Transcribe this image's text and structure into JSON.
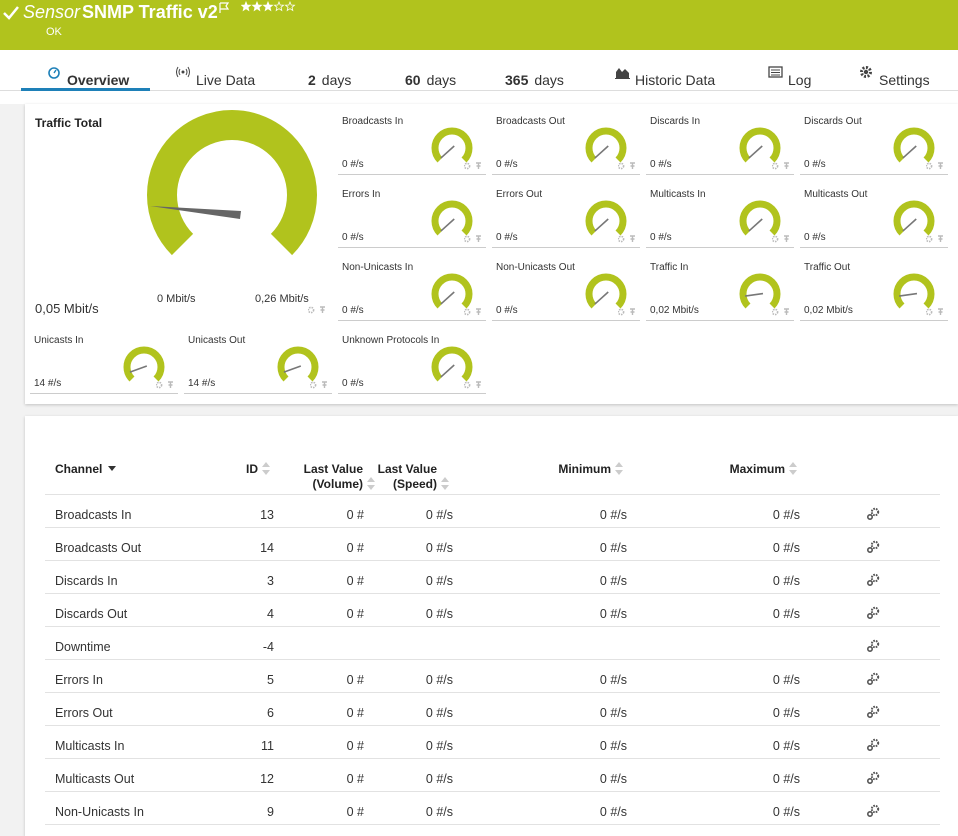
{
  "header": {
    "prefix": "Sensor",
    "title": "SNMP Traffic v2",
    "status": "OK"
  },
  "tabs": [
    {
      "label": "Overview"
    },
    {
      "label": "Live Data"
    },
    {
      "count": "2",
      "label": "days"
    },
    {
      "count": "60",
      "label": "days"
    },
    {
      "count": "365",
      "label": "days"
    },
    {
      "label": "Historic Data"
    },
    {
      "label": "Log"
    },
    {
      "label": "Settings"
    }
  ],
  "main_gauge": {
    "label": "Traffic Total",
    "value": "0,05 Mbit/s",
    "min": "0 Mbit/s",
    "max": "0,26 Mbit/s"
  },
  "gauges": [
    {
      "label": "Broadcasts In",
      "value": "0 #/s"
    },
    {
      "label": "Broadcasts Out",
      "value": "0 #/s"
    },
    {
      "label": "Discards In",
      "value": "0 #/s"
    },
    {
      "label": "Discards Out",
      "value": "0 #/s"
    },
    {
      "label": "Errors In",
      "value": "0 #/s"
    },
    {
      "label": "Errors Out",
      "value": "0 #/s"
    },
    {
      "label": "Multicasts In",
      "value": "0 #/s"
    },
    {
      "label": "Multicasts Out",
      "value": "0 #/s"
    },
    {
      "label": "Non-Unicasts In",
      "value": "0 #/s"
    },
    {
      "label": "Non-Unicasts Out",
      "value": "0 #/s"
    },
    {
      "label": "Traffic In",
      "value": "0,02 Mbit/s"
    },
    {
      "label": "Traffic Out",
      "value": "0,02 Mbit/s"
    },
    {
      "label": "Unicasts In",
      "value": "14 #/s"
    },
    {
      "label": "Unicasts Out",
      "value": "14 #/s"
    },
    {
      "label": "Unknown Protocols In",
      "value": "0 #/s"
    }
  ],
  "table": {
    "headers": [
      [
        "Channel"
      ],
      [
        "ID"
      ],
      [
        "Last Value",
        "(Volume)"
      ],
      [
        "Last Value",
        "(Speed)"
      ],
      [
        "Minimum"
      ],
      [
        "Maximum"
      ]
    ],
    "rows": [
      {
        "channel": "Broadcasts In",
        "id": 13,
        "volume": "0 #",
        "speed": "0 #/s",
        "min": "0 #/s",
        "max": "0 #/s"
      },
      {
        "channel": "Broadcasts Out",
        "id": 14,
        "volume": "0 #",
        "speed": "0 #/s",
        "min": "0 #/s",
        "max": "0 #/s"
      },
      {
        "channel": "Discards In",
        "id": 3,
        "volume": "0 #",
        "speed": "0 #/s",
        "min": "0 #/s",
        "max": "0 #/s"
      },
      {
        "channel": "Discards Out",
        "id": 4,
        "volume": "0 #",
        "speed": "0 #/s",
        "min": "0 #/s",
        "max": "0 #/s"
      },
      {
        "channel": "Downtime",
        "id": -4
      },
      {
        "channel": "Errors In",
        "id": 5,
        "volume": "0 #",
        "speed": "0 #/s",
        "min": "0 #/s",
        "max": "0 #/s"
      },
      {
        "channel": "Errors Out",
        "id": 6,
        "volume": "0 #",
        "speed": "0 #/s",
        "min": "0 #/s",
        "max": "0 #/s"
      },
      {
        "channel": "Multicasts In",
        "id": 11,
        "volume": "0 #",
        "speed": "0 #/s",
        "min": "0 #/s",
        "max": "0 #/s"
      },
      {
        "channel": "Multicasts Out",
        "id": 12,
        "volume": "0 #",
        "speed": "0 #/s",
        "min": "0 #/s",
        "max": "0 #/s"
      },
      {
        "channel": "Non-Unicasts In",
        "id": 9,
        "volume": "0 #",
        "speed": "0 #/s",
        "min": "0 #/s",
        "max": "0 #/s"
      }
    ]
  }
}
